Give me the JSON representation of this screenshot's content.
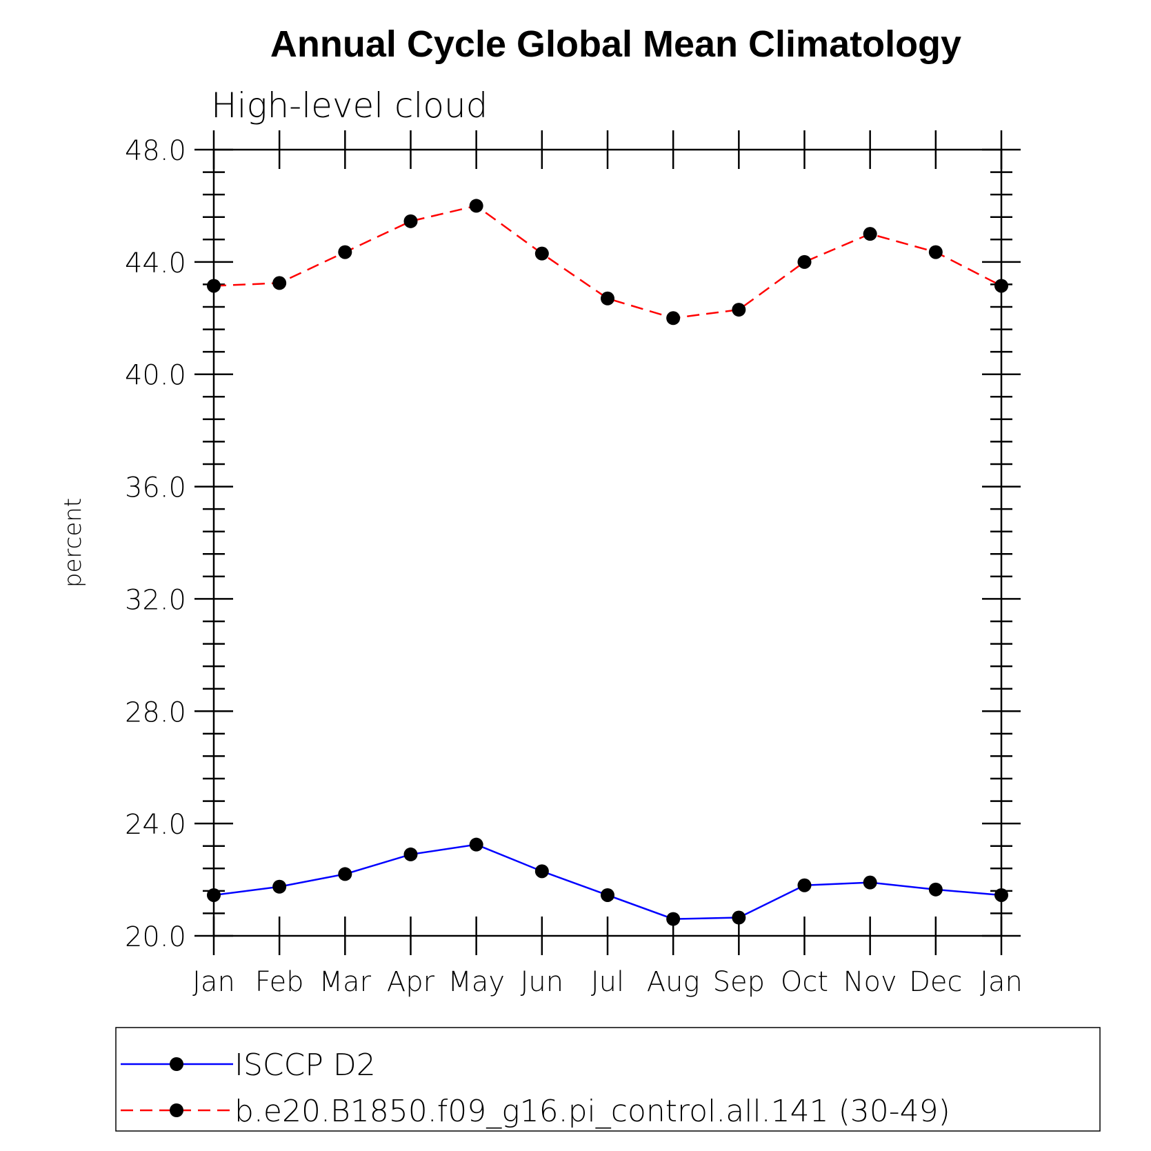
{
  "chart_data": {
    "type": "line",
    "title": "Annual Cycle Global Mean Climatology",
    "subtitle": "High-level cloud",
    "xlabel": "",
    "ylabel": "percent",
    "ylim": [
      20.0,
      48.0
    ],
    "yticks": [
      "20.0",
      "24.0",
      "28.0",
      "32.0",
      "36.0",
      "40.0",
      "44.0",
      "48.0"
    ],
    "categories": [
      "Jan",
      "Feb",
      "Mar",
      "Apr",
      "May",
      "Jun",
      "Jul",
      "Aug",
      "Sep",
      "Oct",
      "Nov",
      "Dec",
      "Jan"
    ],
    "series": [
      {
        "name": "ISCCP D2",
        "color": "#0000ff",
        "dash": "solid",
        "marker": "filled-circle",
        "values": [
          21.45,
          21.75,
          22.2,
          22.9,
          23.25,
          22.3,
          21.45,
          20.6,
          20.65,
          21.8,
          21.9,
          21.65,
          21.45
        ]
      },
      {
        "name": "b.e20.B1850.f09_g16.pi_control.all.141 (30-49)",
        "color": "#ff0000",
        "dash": "dashed",
        "marker": "filled-circle",
        "values": [
          43.15,
          43.25,
          44.35,
          45.45,
          46.0,
          44.3,
          42.7,
          42.0,
          42.3,
          44.0,
          45.0,
          44.35,
          43.15
        ]
      }
    ],
    "legend_position": "bottom",
    "grid": false
  }
}
